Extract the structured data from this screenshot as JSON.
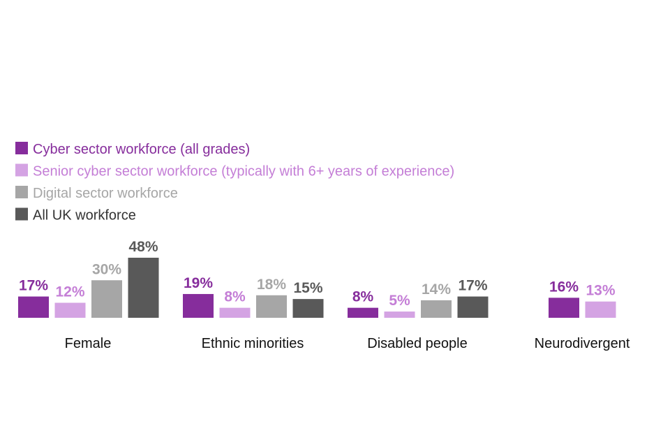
{
  "chart_data": {
    "type": "bar",
    "categories": [
      "Female",
      "Ethnic minorities",
      "Disabled people",
      "Neurodivergent"
    ],
    "series": [
      {
        "name": "Cyber sector workforce (all grades)",
        "color": "#862d9c",
        "values": [
          17,
          19,
          8,
          16
        ],
        "labels": [
          "17%",
          "19%",
          "8%",
          "16%"
        ]
      },
      {
        "name": "Senior cyber sector workforce (typically with 6+ years of experience)",
        "color": "#d4a3e3",
        "values": [
          12,
          8,
          5,
          13
        ],
        "labels": [
          "12%",
          "8%",
          "5%",
          "13%"
        ]
      },
      {
        "name": "Digital sector workforce",
        "color": "#a6a6a6",
        "values": [
          30,
          18,
          14,
          null
        ],
        "labels": [
          "30%",
          "18%",
          "14%",
          ""
        ]
      },
      {
        "name": "All UK workforce",
        "color": "#595959",
        "values": [
          48,
          15,
          17,
          null
        ],
        "labels": [
          "48%",
          "15%",
          "17%",
          ""
        ]
      }
    ],
    "legend_text_colors": [
      "#862d9c",
      "#c47ed6",
      "#a6a6a6",
      "#333333"
    ],
    "value_label_colors": [
      "#862d9c",
      "#c47ed6",
      "#a6a6a6",
      "#595959"
    ],
    "ylim": [
      0,
      48
    ],
    "legend_position": "top-left",
    "grid": false
  }
}
